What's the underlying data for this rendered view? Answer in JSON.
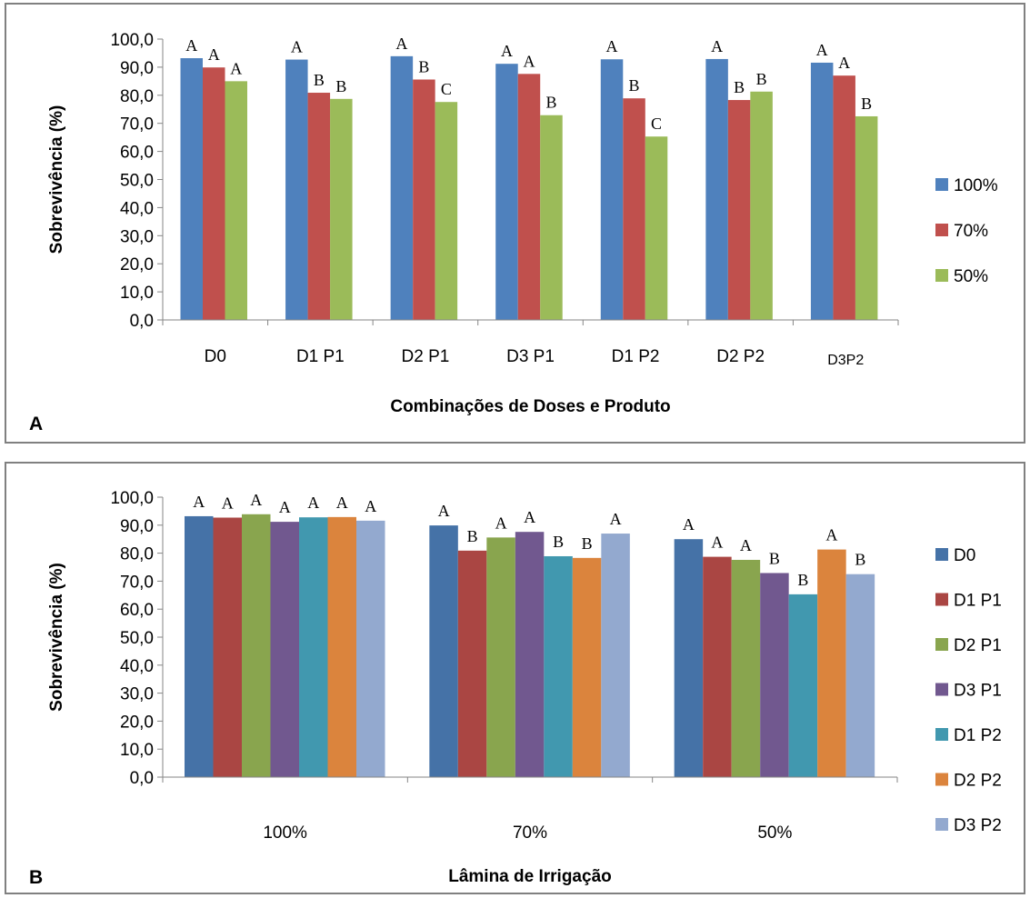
{
  "chart_data": [
    {
      "type": "bar",
      "panel_label": "A",
      "xlabel": "Combinações de Doses e Produto",
      "ylabel": "Sobrevivência (%)",
      "ylim": [
        0,
        100
      ],
      "yticks": [
        "0,0",
        "10,0",
        "20,0",
        "30,0",
        "40,0",
        "50,0",
        "60,0",
        "70,0",
        "80,0",
        "90,0",
        "100,0"
      ],
      "categories": [
        "D0",
        "D1 P1",
        "D2 P1",
        "D3 P1",
        "D1 P2",
        "D2 P2",
        "D3P2"
      ],
      "series": [
        {
          "name": "100%",
          "color": "#4F81BD",
          "values": [
            93.2,
            92.7,
            93.9,
            91.2,
            92.8,
            92.9,
            91.6
          ],
          "labels": [
            "A",
            "A",
            "A",
            "A",
            "A",
            "A",
            "A"
          ]
        },
        {
          "name": "70%",
          "color": "#C0504D",
          "values": [
            89.9,
            80.9,
            85.6,
            87.6,
            78.9,
            78.3,
            87.0
          ],
          "labels": [
            "A",
            "B",
            "B",
            "A",
            "B",
            "B",
            "A"
          ]
        },
        {
          "name": "50%",
          "color": "#9BBB59",
          "values": [
            85.0,
            78.7,
            77.6,
            72.9,
            65.3,
            81.3,
            72.5
          ],
          "labels": [
            "A",
            "B",
            "C",
            "B",
            "C",
            "B",
            "B"
          ]
        }
      ],
      "legend_position": "right",
      "grid": false
    },
    {
      "type": "bar",
      "panel_label": "B",
      "xlabel": "Lâmina de Irrigação",
      "ylabel": "Sobrevivência (%)",
      "ylim": [
        0,
        100
      ],
      "yticks": [
        "0,0",
        "10,0",
        "20,0",
        "30,0",
        "40,0",
        "50,0",
        "60,0",
        "70,0",
        "80,0",
        "90,0",
        "100,0"
      ],
      "categories": [
        "100%",
        "70%",
        "50%"
      ],
      "series": [
        {
          "name": "D0",
          "color": "#4572A7",
          "values": [
            93.2,
            89.9,
            85.0
          ],
          "labels": [
            "A",
            "A",
            "A"
          ]
        },
        {
          "name": "D1 P1",
          "color": "#AA4643",
          "values": [
            92.7,
            80.9,
            78.7
          ],
          "labels": [
            "A",
            "B",
            "A"
          ]
        },
        {
          "name": "D2 P1",
          "color": "#89A54E",
          "values": [
            93.9,
            85.6,
            77.6
          ],
          "labels": [
            "A",
            "A",
            "A"
          ]
        },
        {
          "name": "D3 P1",
          "color": "#71588F",
          "values": [
            91.2,
            87.6,
            72.9
          ],
          "labels": [
            "A",
            "A",
            "B"
          ]
        },
        {
          "name": "D1 P2",
          "color": "#4198AF",
          "values": [
            92.8,
            78.9,
            65.3
          ],
          "labels": [
            "A",
            "B",
            "B"
          ]
        },
        {
          "name": "D2 P2",
          "color": "#DB843D",
          "values": [
            92.9,
            78.3,
            81.3
          ],
          "labels": [
            "A",
            "B",
            "A"
          ]
        },
        {
          "name": "D3 P2",
          "color": "#93A9CF",
          "values": [
            91.6,
            87.0,
            72.5
          ],
          "labels": [
            "A",
            "A",
            "B"
          ]
        }
      ],
      "legend_position": "right",
      "grid": false
    }
  ]
}
